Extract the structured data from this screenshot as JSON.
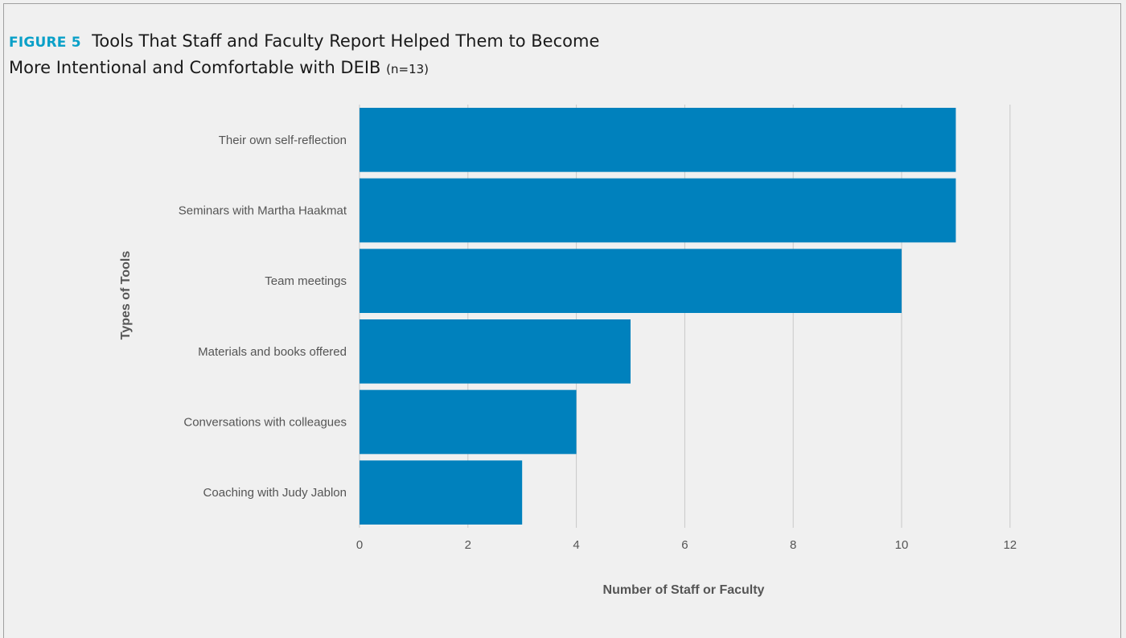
{
  "figure": {
    "label": "FIGURE 5",
    "title_line1": "Tools That Staff and Faculty Report Helped Them to Become",
    "title_line2": "More Intentional and Comfortable with DEIB",
    "sample_note": "(n=13)"
  },
  "chart_data": {
    "type": "bar",
    "orientation": "horizontal",
    "categories": [
      "Their own self-reflection",
      "Seminars with Martha Haakmat",
      "Team meetings",
      "Materials and books offered",
      "Conversations with colleagues",
      "Coaching with Judy Jablon"
    ],
    "values": [
      11,
      11,
      10,
      5,
      4,
      3
    ],
    "xlabel": "Number of Staff or Faculty",
    "ylabel": "Types of Tools",
    "xlim": [
      0,
      12
    ],
    "xticks": [
      0,
      2,
      4,
      6,
      8,
      10,
      12
    ],
    "grid": "vertical",
    "bar_color": "#0081bd",
    "legend": "none"
  }
}
